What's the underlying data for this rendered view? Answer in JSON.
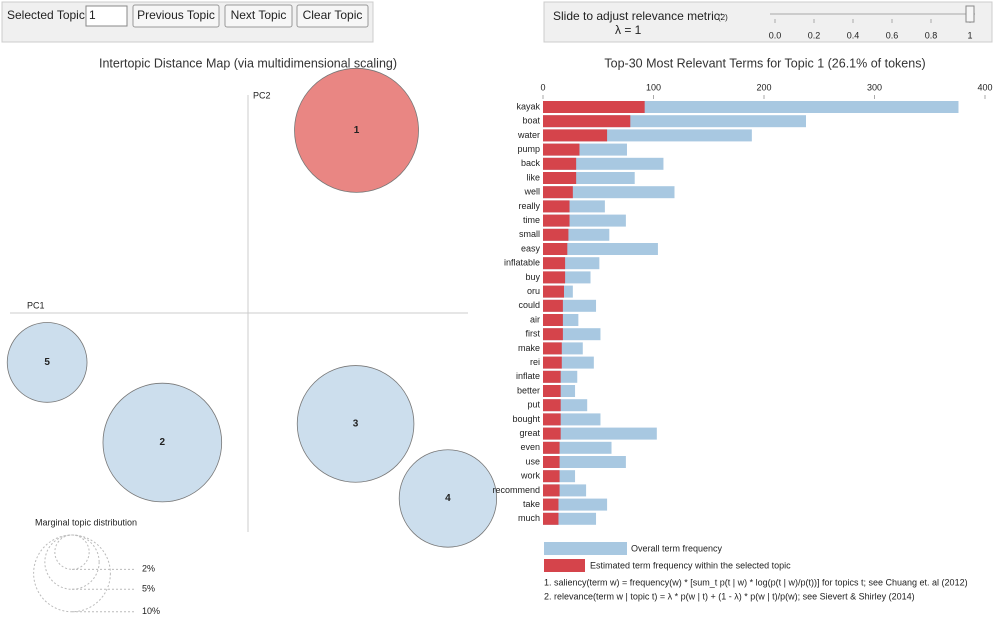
{
  "controls": {
    "selected_topic_label": "Selected Topic:",
    "selected_topic": "1",
    "buttons": [
      "Previous Topic",
      "Next Topic",
      "Clear Topic"
    ]
  },
  "slider": {
    "label": "Slide to adjust relevance metric:",
    "footnote_ref": "(2)",
    "lambda_label": "λ = 1",
    "value": 1,
    "lim": [
      0,
      1
    ],
    "ticks": [
      {
        "value": 0,
        "label": "0.0"
      },
      0.2,
      0.4,
      0.6,
      0.8,
      1
    ]
  },
  "chart_data": [
    {
      "type": "scatter",
      "title": "Intertopic Distance Map (via multidimensional scaling)",
      "x_label": "PC1",
      "y_label": "PC2",
      "labels": [
        "1",
        "2",
        "3",
        "4",
        "5"
      ],
      "x": [
        0.114,
        -0.09,
        0.113,
        0.21,
        -0.211
      ],
      "y": [
        0.196,
        -0.139,
        -0.119,
        -0.199,
        -0.053
      ],
      "sizes": [
        26.1,
        23.9,
        23.1,
        16.1,
        10.8
      ],
      "colors": [
        "#e8807c",
        "#c9dcec",
        "#c9dcec",
        "#c9dcec",
        "#c9dcec"
      ],
      "xlim": [
        -0.25,
        0.25
      ],
      "ylim": [
        -0.25,
        0.25
      ],
      "size_legend": {
        "title": "Marginal topic distribution",
        "values": [
          {
            "value": 2,
            "label": "2%"
          },
          {
            "value": 5,
            "label": "5%"
          },
          {
            "value": 10,
            "label": "10%"
          }
        ]
      }
    },
    {
      "type": "bar",
      "orientation": "horizontal",
      "title": "Top-30 Most Relevant Terms for Topic 1 (26.1% of tokens)",
      "categories": [
        "kayak",
        "boat",
        "water",
        "pump",
        "back",
        "like",
        "well",
        "really",
        "time",
        "small",
        "easy",
        "inflatable",
        "buy",
        "oru",
        "could",
        "air",
        "first",
        "make",
        "rei",
        "inflate",
        "better",
        "put",
        "bought",
        "great",
        "even",
        "use",
        "work",
        "recommend",
        "take",
        "much"
      ],
      "series": [
        {
          "name": "Overall term frequency",
          "color": "#a8c8e1",
          "values": [
            376,
            238,
            189,
            76,
            109,
            83,
            119,
            56,
            75,
            60,
            104,
            51,
            43,
            27,
            48,
            32,
            52,
            36,
            46,
            31,
            29,
            40,
            52,
            103,
            62,
            75,
            29,
            39,
            58,
            48
          ]
        },
        {
          "name": "Estimated term frequency within the selected topic",
          "color": "#d5444b",
          "values": [
            92,
            79,
            58,
            33,
            30,
            30,
            27,
            24,
            24,
            23,
            22,
            20,
            20,
            19,
            18,
            18,
            18,
            17,
            17,
            16,
            16,
            16,
            16,
            16,
            15,
            15,
            15,
            15,
            14,
            14
          ]
        }
      ],
      "xlim": [
        0,
        400
      ],
      "xticks": [
        0,
        100,
        200,
        300,
        400
      ],
      "notes": [
        "1. saliency(term w) = frequency(w) * [sum_t p(t | w) * log(p(t | w)/p(t))] for topics t; see Chuang et. al (2012)",
        "2. relevance(term w | topic t) = λ * p(w | t) + (1 - λ) * p(w | t)/p(w); see Sievert & Shirley (2014)"
      ]
    }
  ]
}
